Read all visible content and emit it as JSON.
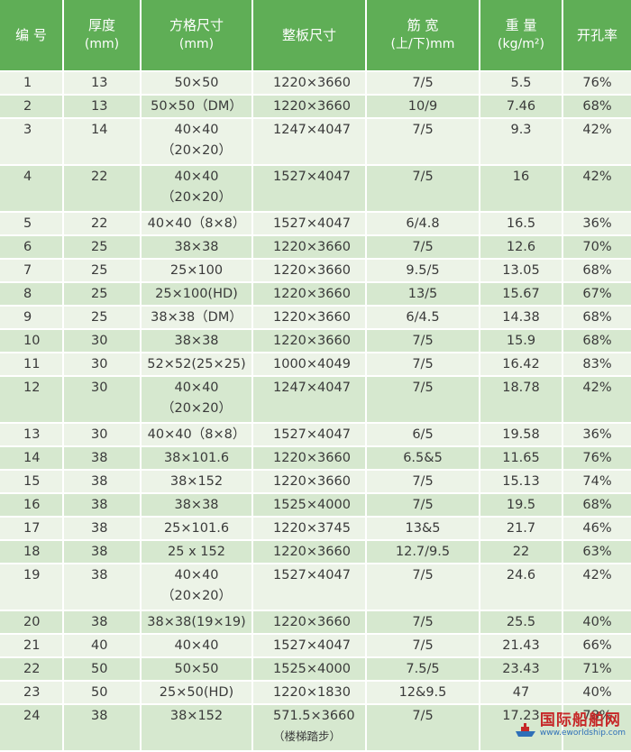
{
  "headers": [
    {
      "line1": "编 号",
      "line2": ""
    },
    {
      "line1": "厚度",
      "line2": "(mm)"
    },
    {
      "line1": "方格尺寸",
      "line2": "(mm)"
    },
    {
      "line1": "整板尺寸",
      "line2": ""
    },
    {
      "line1": "筋 宽",
      "line2": "(上/下)mm"
    },
    {
      "line1": "重 量",
      "line2": "(kg/m²)"
    },
    {
      "line1": "开孔率",
      "line2": ""
    }
  ],
  "rows": [
    {
      "no": "1",
      "thickness": "13",
      "grid": [
        "50×50"
      ],
      "panel": [
        "1220×3660"
      ],
      "rib": "7/5",
      "weight": "5.5",
      "open": "76%"
    },
    {
      "no": "2",
      "thickness": "13",
      "grid": [
        "50×50（DM）"
      ],
      "panel": [
        "1220×3660"
      ],
      "rib": "10/9",
      "weight": "7.46",
      "open": "68%"
    },
    {
      "no": "3",
      "thickness": "14",
      "grid": [
        "40×40",
        "（20×20）"
      ],
      "panel": [
        "1247×4047"
      ],
      "rib": "7/5",
      "weight": "9.3",
      "open": "42%"
    },
    {
      "no": "4",
      "thickness": "22",
      "grid": [
        "40×40",
        "（20×20）"
      ],
      "panel": [
        "1527×4047"
      ],
      "rib": "7/5",
      "weight": "16",
      "open": "42%"
    },
    {
      "no": "5",
      "thickness": "22",
      "grid": [
        "40×40（8×8）"
      ],
      "panel": [
        "1527×4047"
      ],
      "rib": "6/4.8",
      "weight": "16.5",
      "open": "36%"
    },
    {
      "no": "6",
      "thickness": "25",
      "grid": [
        "38×38"
      ],
      "panel": [
        "1220×3660"
      ],
      "rib": "7/5",
      "weight": "12.6",
      "open": "70%"
    },
    {
      "no": "7",
      "thickness": "25",
      "grid": [
        "25×100"
      ],
      "panel": [
        "1220×3660"
      ],
      "rib": "9.5/5",
      "weight": "13.05",
      "open": "68%"
    },
    {
      "no": "8",
      "thickness": "25",
      "grid": [
        "25×100(HD)"
      ],
      "panel": [
        "1220×3660"
      ],
      "rib": "13/5",
      "weight": "15.67",
      "open": "67%"
    },
    {
      "no": "9",
      "thickness": "25",
      "grid": [
        "38×38（DM）"
      ],
      "panel": [
        "1220×3660"
      ],
      "rib": "6/4.5",
      "weight": "14.38",
      "open": "68%"
    },
    {
      "no": "10",
      "thickness": "30",
      "grid": [
        "38×38"
      ],
      "panel": [
        "1220×3660"
      ],
      "rib": "7/5",
      "weight": "15.9",
      "open": "68%"
    },
    {
      "no": "11",
      "thickness": "30",
      "grid": [
        "52×52(25×25)"
      ],
      "panel": [
        "1000×4049"
      ],
      "rib": "7/5",
      "weight": "16.42",
      "open": "83%"
    },
    {
      "no": "12",
      "thickness": "30",
      "grid": [
        "40×40",
        "（20×20）"
      ],
      "panel": [
        "1247×4047"
      ],
      "rib": "7/5",
      "weight": "18.78",
      "open": "42%"
    },
    {
      "no": "13",
      "thickness": "30",
      "grid": [
        "40×40（8×8）"
      ],
      "panel": [
        "1527×4047"
      ],
      "rib": "6/5",
      "weight": "19.58",
      "open": "36%"
    },
    {
      "no": "14",
      "thickness": "38",
      "grid": [
        "38×101.6"
      ],
      "panel": [
        "1220×3660"
      ],
      "rib": "6.5&5",
      "weight": "11.65",
      "open": "76%"
    },
    {
      "no": "15",
      "thickness": "38",
      "grid": [
        "38×152"
      ],
      "panel": [
        "1220×3660"
      ],
      "rib": "7/5",
      "weight": "15.13",
      "open": "74%"
    },
    {
      "no": "16",
      "thickness": "38",
      "grid": [
        "38×38"
      ],
      "panel": [
        "1525×4000"
      ],
      "rib": "7/5",
      "weight": "19.5",
      "open": "68%"
    },
    {
      "no": "17",
      "thickness": "38",
      "grid": [
        "25×101.6"
      ],
      "panel": [
        "1220×3745"
      ],
      "rib": "13&5",
      "weight": "21.7",
      "open": "46%"
    },
    {
      "no": "18",
      "thickness": "38",
      "grid": [
        "25 x 152"
      ],
      "panel": [
        "1220×3660"
      ],
      "rib": "12.7/9.5",
      "weight": "22",
      "open": "63%"
    },
    {
      "no": "19",
      "thickness": "38",
      "grid": [
        "40×40",
        "（20×20）"
      ],
      "panel": [
        "1527×4047"
      ],
      "rib": "7/5",
      "weight": "24.6",
      "open": "42%"
    },
    {
      "no": "20",
      "thickness": "38",
      "grid": [
        "38×38(19×19)"
      ],
      "panel": [
        "1220×3660"
      ],
      "rib": "7/5",
      "weight": "25.5",
      "open": "40%"
    },
    {
      "no": "21",
      "thickness": "40",
      "grid": [
        "40×40"
      ],
      "panel": [
        "1527×4047"
      ],
      "rib": "7/5",
      "weight": "21.43",
      "open": "66%"
    },
    {
      "no": "22",
      "thickness": "50",
      "grid": [
        "50×50"
      ],
      "panel": [
        "1525×4000"
      ],
      "rib": "7.5/5",
      "weight": "23.43",
      "open": "71%"
    },
    {
      "no": "23",
      "thickness": "50",
      "grid": [
        "25×50(HD)"
      ],
      "panel": [
        "1220×1830"
      ],
      "rib": "12&9.5",
      "weight": "47",
      "open": "40%"
    },
    {
      "no": "24",
      "thickness": "38",
      "grid": [
        "38×152"
      ],
      "panel": [
        "571.5×3660",
        "（楼梯踏步）"
      ],
      "rib": "7/5",
      "weight": "17.23",
      "open": "78%"
    }
  ],
  "watermark": {
    "cn": "国际船舶网",
    "en": "www.eworldship.com",
    "icon": "ship-icon",
    "cn_color": "#c62828",
    "en_color": "#2e6fb8"
  },
  "colors": {
    "header": "#5fae56",
    "row_light": "#ecf3e7",
    "row_dark": "#d6e8cf",
    "text": "#3a3a3a"
  }
}
